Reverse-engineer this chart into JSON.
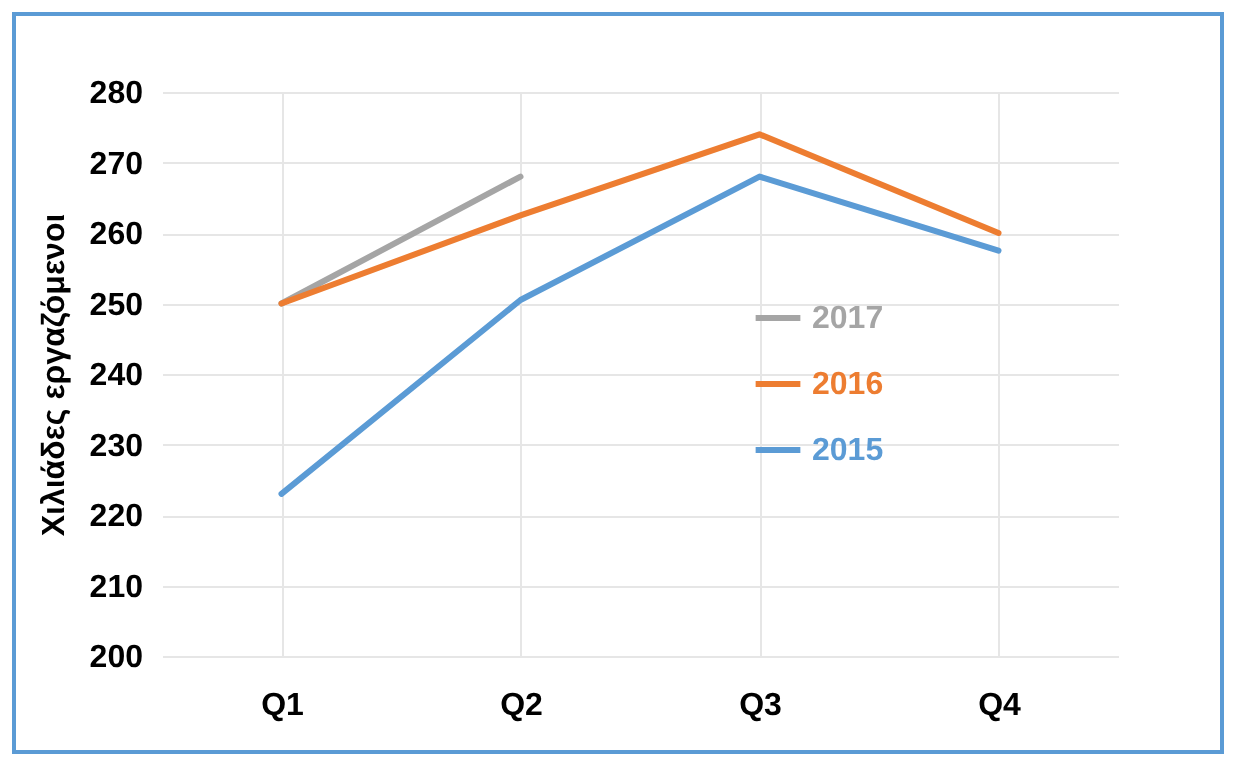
{
  "chart_data": {
    "type": "line",
    "ylabel": "Χιλιάδες εργαζόμενοι",
    "categories": [
      "Q1",
      "Q2",
      "Q3",
      "Q4"
    ],
    "series": [
      {
        "name": "2017",
        "color": "#a5a5a5",
        "values": [
          250,
          268,
          null,
          null
        ]
      },
      {
        "name": "2016",
        "color": "#ed7d31",
        "values": [
          250,
          262.5,
          274,
          260
        ]
      },
      {
        "name": "2015",
        "color": "#5b9bd5",
        "values": [
          223,
          250.5,
          268,
          257.5
        ]
      }
    ],
    "ylim": [
      200,
      280
    ],
    "yticks": [
      200,
      210,
      220,
      230,
      240,
      250,
      260,
      270,
      280
    ],
    "grid": true,
    "legend": "right",
    "marker": "none",
    "line_style": "solid"
  }
}
